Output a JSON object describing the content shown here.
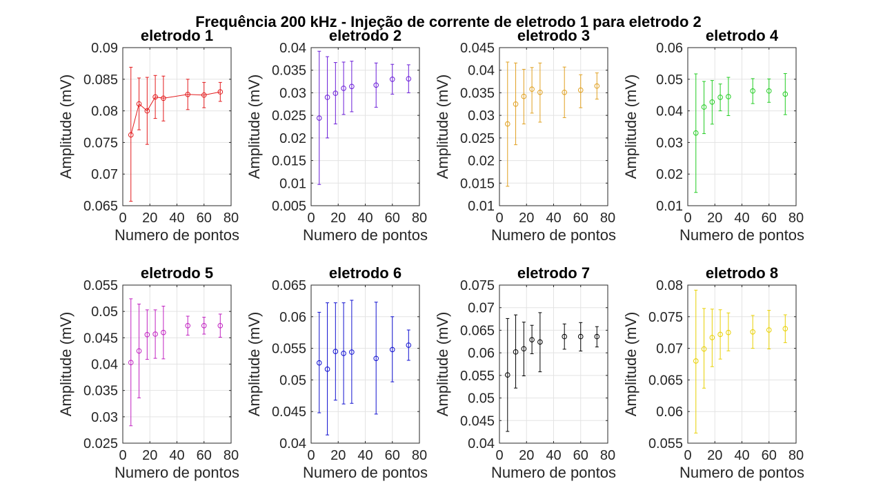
{
  "figure": {
    "suptitle": "Frequência 200 kHz - Injeção de corrente de eletrodo 1 para eletrodo 2"
  },
  "chart_data": [
    {
      "type": "scatter",
      "title": "eletrodo 1",
      "color": "#e31a1c",
      "connected": true,
      "xlabel": "Numero de pontos",
      "ylabel": "Amplitude (mV)",
      "xlim": [
        0,
        80
      ],
      "ylim": [
        0.065,
        0.09
      ],
      "grid": true,
      "xticks": [
        "0",
        "20",
        "40",
        "60",
        "80"
      ],
      "yticks": [
        "0.065",
        "0.07",
        "0.075",
        "0.08",
        "0.085",
        "0.09"
      ],
      "x": [
        6,
        12,
        18,
        24,
        30,
        48,
        60,
        72
      ],
      "y": [
        0.0762,
        0.0811,
        0.08,
        0.0822,
        0.082,
        0.0826,
        0.0825,
        0.083
      ],
      "err_low": [
        0.0657,
        0.077,
        0.0747,
        0.0788,
        0.0784,
        0.0802,
        0.0805,
        0.0815
      ],
      "err_high": [
        0.0869,
        0.0852,
        0.0853,
        0.0856,
        0.0855,
        0.085,
        0.0845,
        0.0845
      ]
    },
    {
      "type": "scatter",
      "title": "eletrodo 2",
      "color": "#6a1cd8",
      "connected": false,
      "xlabel": "Numero de pontos",
      "ylabel": "Amplitude (mV)",
      "xlim": [
        0,
        80
      ],
      "ylim": [
        0.005,
        0.04
      ],
      "grid": true,
      "xticks": [
        "0",
        "20",
        "40",
        "60",
        "80"
      ],
      "yticks": [
        "0.005",
        "0.01",
        "0.015",
        "0.02",
        "0.025",
        "0.03",
        "0.035",
        "0.04"
      ],
      "x": [
        6,
        12,
        18,
        24,
        30,
        48,
        60,
        72
      ],
      "y": [
        0.0244,
        0.029,
        0.0299,
        0.031,
        0.0314,
        0.0317,
        0.033,
        0.0331
      ],
      "err_low": [
        0.0097,
        0.02,
        0.0231,
        0.0252,
        0.0258,
        0.0268,
        0.0297,
        0.03
      ],
      "err_high": [
        0.0392,
        0.038,
        0.0367,
        0.0368,
        0.037,
        0.0366,
        0.0363,
        0.0362
      ]
    },
    {
      "type": "scatter",
      "title": "eletrodo 3",
      "color": "#e0a020",
      "connected": false,
      "xlabel": "Numero de pontos",
      "ylabel": "Amplitude (mV)",
      "xlim": [
        0,
        80
      ],
      "ylim": [
        0.01,
        0.045
      ],
      "grid": true,
      "xticks": [
        "0",
        "20",
        "40",
        "60",
        "80"
      ],
      "yticks": [
        "0.01",
        "0.015",
        "0.02",
        "0.025",
        "0.03",
        "0.035",
        "0.04",
        "0.045"
      ],
      "x": [
        6,
        12,
        18,
        24,
        30,
        48,
        60,
        72
      ],
      "y": [
        0.0281,
        0.0325,
        0.0342,
        0.0358,
        0.0351,
        0.0351,
        0.0356,
        0.0365
      ],
      "err_low": [
        0.0143,
        0.0235,
        0.0281,
        0.0305,
        0.0285,
        0.0295,
        0.0317,
        0.0336
      ],
      "err_high": [
        0.0418,
        0.0416,
        0.0402,
        0.0406,
        0.0416,
        0.0407,
        0.039,
        0.0394
      ]
    },
    {
      "type": "scatter",
      "title": "eletrodo 4",
      "color": "#22cc22",
      "connected": false,
      "xlabel": "Numero de pontos",
      "ylabel": "Amplitude (mV)",
      "xlim": [
        0,
        80
      ],
      "ylim": [
        0.01,
        0.06
      ],
      "grid": true,
      "xticks": [
        "0",
        "20",
        "40",
        "60",
        "80"
      ],
      "yticks": [
        "0.01",
        "0.02",
        "0.03",
        "0.04",
        "0.05",
        "0.06"
      ],
      "x": [
        6,
        12,
        18,
        24,
        30,
        48,
        60,
        72
      ],
      "y": [
        0.033,
        0.0412,
        0.0428,
        0.0443,
        0.0445,
        0.0463,
        0.0463,
        0.0453
      ],
      "err_low": [
        0.0142,
        0.0328,
        0.0358,
        0.04,
        0.0385,
        0.0423,
        0.0427,
        0.0388
      ],
      "err_high": [
        0.0517,
        0.0493,
        0.0496,
        0.0485,
        0.0506,
        0.0502,
        0.0501,
        0.0518
      ]
    },
    {
      "type": "scatter",
      "title": "eletrodo 5",
      "color": "#c020c0",
      "connected": false,
      "xlabel": "Numero de pontos",
      "ylabel": "Amplitude (mV)",
      "xlim": [
        0,
        80
      ],
      "ylim": [
        0.025,
        0.055
      ],
      "grid": true,
      "xticks": [
        "0",
        "20",
        "40",
        "60",
        "80"
      ],
      "yticks": [
        "0.025",
        "0.03",
        "0.035",
        "0.04",
        "0.045",
        "0.05",
        "0.055"
      ],
      "x": [
        6,
        12,
        18,
        24,
        30,
        48,
        60,
        72
      ],
      "y": [
        0.0403,
        0.0425,
        0.0456,
        0.0457,
        0.046,
        0.0473,
        0.0473,
        0.0473
      ],
      "err_low": [
        0.0283,
        0.0336,
        0.0409,
        0.0411,
        0.041,
        0.0455,
        0.0457,
        0.0451
      ],
      "err_high": [
        0.0524,
        0.0514,
        0.0503,
        0.0503,
        0.051,
        0.0491,
        0.0489,
        0.0495
      ]
    },
    {
      "type": "scatter",
      "title": "eletrodo 6",
      "color": "#1010d0",
      "connected": false,
      "xlabel": "Numero de pontos",
      "ylabel": "Amplitude (mV)",
      "xlim": [
        0,
        80
      ],
      "ylim": [
        0.04,
        0.065
      ],
      "grid": true,
      "xticks": [
        "0",
        "20",
        "40",
        "60",
        "80"
      ],
      "yticks": [
        "0.04",
        "0.045",
        "0.05",
        "0.055",
        "0.06",
        "0.065"
      ],
      "x": [
        6,
        12,
        18,
        24,
        30,
        48,
        60,
        72
      ],
      "y": [
        0.0527,
        0.0517,
        0.0545,
        0.0542,
        0.0544,
        0.0534,
        0.0548,
        0.0555
      ],
      "err_low": [
        0.0448,
        0.0413,
        0.0468,
        0.0462,
        0.0463,
        0.0446,
        0.0497,
        0.0531
      ],
      "err_high": [
        0.0607,
        0.0622,
        0.0622,
        0.0622,
        0.0626,
        0.0623,
        0.06,
        0.0579
      ]
    },
    {
      "type": "scatter",
      "title": "eletrodo 7",
      "color": "#000000",
      "connected": false,
      "xlabel": "Numero de pontos",
      "ylabel": "Amplitude (mV)",
      "xlim": [
        0,
        80
      ],
      "ylim": [
        0.04,
        0.075
      ],
      "grid": true,
      "xticks": [
        "0",
        "20",
        "40",
        "60",
        "80"
      ],
      "yticks": [
        "0.04",
        "0.045",
        "0.05",
        "0.055",
        "0.06",
        "0.065",
        "0.07",
        "0.075"
      ],
      "x": [
        6,
        12,
        18,
        24,
        30,
        48,
        60,
        72
      ],
      "y": [
        0.0551,
        0.0602,
        0.0609,
        0.0629,
        0.0624,
        0.0636,
        0.0636,
        0.0636
      ],
      "err_low": [
        0.0426,
        0.0522,
        0.0549,
        0.0598,
        0.0558,
        0.0608,
        0.0604,
        0.0613
      ],
      "err_high": [
        0.0676,
        0.0684,
        0.0668,
        0.0661,
        0.0689,
        0.0664,
        0.0667,
        0.0658
      ]
    },
    {
      "type": "scatter",
      "title": "eletrodo 8",
      "color": "#e8d000",
      "connected": false,
      "xlabel": "Numero de pontos",
      "ylabel": "Amplitude (mV)",
      "xlim": [
        0,
        80
      ],
      "ylim": [
        0.055,
        0.08
      ],
      "grid": true,
      "xticks": [
        "0",
        "20",
        "40",
        "60",
        "80"
      ],
      "yticks": [
        "0.055",
        "0.06",
        "0.065",
        "0.07",
        "0.075",
        "0.08"
      ],
      "x": [
        6,
        12,
        18,
        24,
        30,
        48,
        60,
        72
      ],
      "y": [
        0.068,
        0.0699,
        0.0717,
        0.0722,
        0.0725,
        0.0726,
        0.0729,
        0.0731
      ],
      "err_low": [
        0.0566,
        0.0637,
        0.0671,
        0.0683,
        0.0696,
        0.07,
        0.0699,
        0.0709
      ],
      "err_high": [
        0.0792,
        0.0763,
        0.0762,
        0.0761,
        0.0756,
        0.0752,
        0.076,
        0.0753
      ]
    }
  ]
}
